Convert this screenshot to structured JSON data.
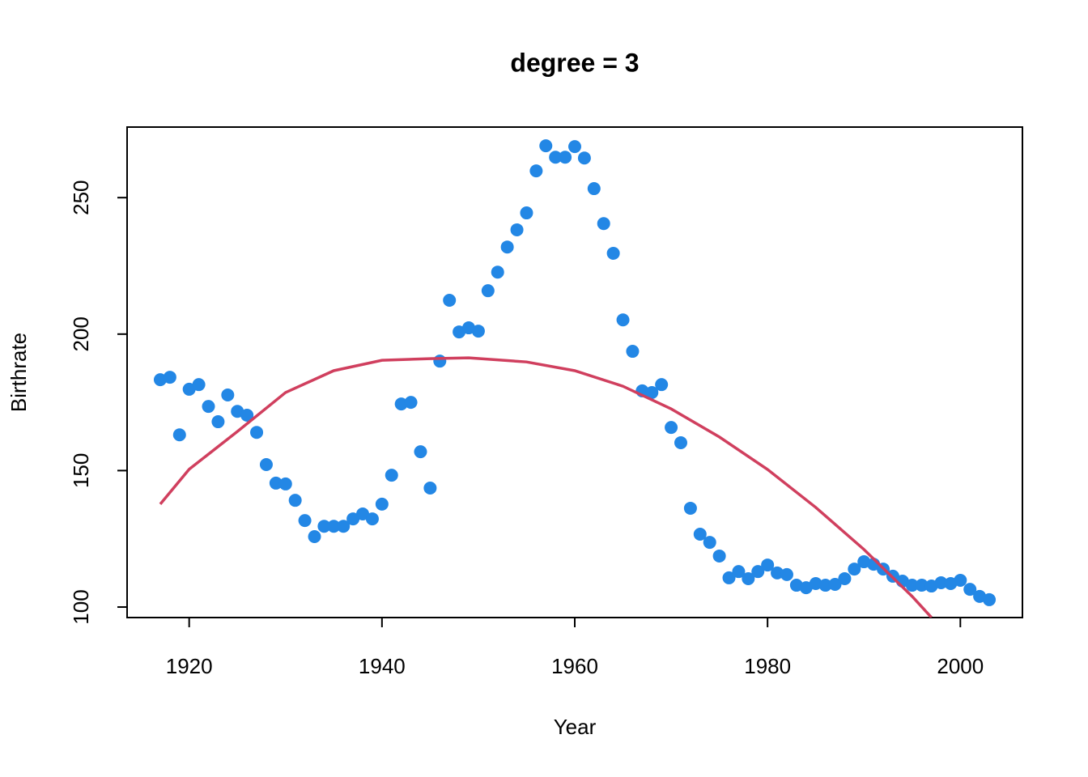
{
  "chart_data": {
    "type": "scatter",
    "title": "degree = 3",
    "x_label": "Year",
    "y_label": "Birthrate",
    "x": [
      1917,
      1918,
      1919,
      1920,
      1921,
      1922,
      1923,
      1924,
      1925,
      1926,
      1927,
      1928,
      1929,
      1930,
      1931,
      1932,
      1933,
      1934,
      1935,
      1936,
      1937,
      1938,
      1939,
      1940,
      1941,
      1942,
      1943,
      1944,
      1945,
      1946,
      1947,
      1948,
      1949,
      1950,
      1951,
      1952,
      1953,
      1954,
      1955,
      1956,
      1957,
      1958,
      1959,
      1960,
      1961,
      1962,
      1963,
      1964,
      1965,
      1966,
      1967,
      1968,
      1969,
      1970,
      1971,
      1972,
      1973,
      1974,
      1975,
      1976,
      1977,
      1978,
      1979,
      1980,
      1981,
      1982,
      1983,
      1984,
      1985,
      1986,
      1987,
      1988,
      1989,
      1990,
      1991,
      1992,
      1993,
      1994,
      1995,
      1996,
      1997,
      1998,
      1999,
      2000,
      2001,
      2002,
      2003
    ],
    "series": [
      {
        "color": "#2387E5",
        "values": [
          183.3,
          184.2,
          163.1,
          179.8,
          181.5,
          173.5,
          167.9,
          177.7,
          171.7,
          170.3,
          164.0,
          152.2,
          145.4,
          145.1,
          139.1,
          131.7,
          125.8,
          129.6,
          129.6,
          129.6,
          132.3,
          134.1,
          132.3,
          137.7,
          148.3,
          174.4,
          175.0,
          156.9,
          143.6,
          190.1,
          212.4,
          200.8,
          202.3,
          201.1,
          215.9,
          222.7,
          231.9,
          238.2,
          244.4,
          259.8,
          269.0,
          264.8,
          264.8,
          268.7,
          264.5,
          253.3,
          240.5,
          229.6,
          205.2,
          193.7,
          179.2,
          178.6,
          181.5,
          165.8,
          160.2,
          136.2,
          126.7,
          123.7,
          118.7,
          110.7,
          113.0,
          110.4,
          113.0,
          115.4,
          112.5,
          111.9,
          108.0,
          107.1,
          108.6,
          108.0,
          108.3,
          110.4,
          113.9,
          116.6,
          115.7,
          113.9,
          111.3,
          109.5,
          108.0,
          108.0,
          107.7,
          108.9,
          108.6,
          109.8,
          106.5,
          103.9,
          102.7
        ]
      }
    ],
    "fit": {
      "color": "#D03F5E",
      "x": [
        1917,
        1920,
        1925,
        1930,
        1935,
        1940,
        1945,
        1949,
        1955,
        1960,
        1965,
        1970,
        1975,
        1980,
        1985,
        1990,
        1995,
        1997
      ],
      "values": [
        137.7,
        150.5,
        164.3,
        178.6,
        186.6,
        190.4,
        191.0,
        191.3,
        189.8,
        186.6,
        180.9,
        172.6,
        162.3,
        150.4,
        136.5,
        121.1,
        103.9,
        96.2
      ]
    },
    "xlim": [
      1913.56,
      2006.44
    ],
    "ylim": [
      96.15,
      275.85
    ],
    "xticks": [
      1920,
      1940,
      1960,
      1980,
      2000
    ],
    "yticks": [
      100,
      150,
      200,
      250
    ]
  }
}
